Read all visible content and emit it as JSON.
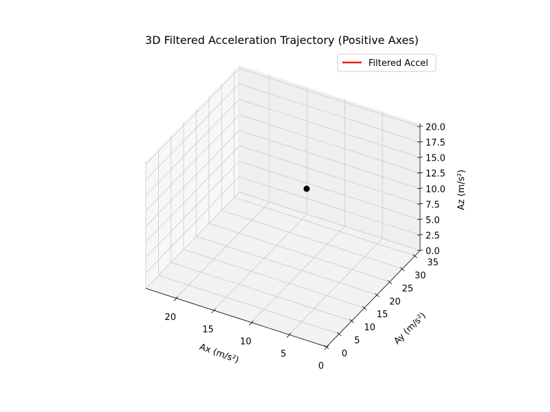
{
  "chart_data": {
    "type": "line",
    "title": "3D Filtered Acceleration Trajectory (Positive Axes)",
    "xlabel": "Ax (m/s²)",
    "ylabel": "Ay (m/s²)",
    "zlabel": "Az (m/s²)",
    "xlim": [
      0,
      24
    ],
    "ylim": [
      0,
      37
    ],
    "zlim": [
      0,
      20.5
    ],
    "xticks": [
      "0",
      "5",
      "10",
      "15",
      "20"
    ],
    "yticks": [
      "0",
      "5",
      "10",
      "15",
      "20",
      "25",
      "30",
      "35"
    ],
    "zticks": [
      "0.0",
      "2.5",
      "5.0",
      "7.5",
      "10.0",
      "12.5",
      "15.0",
      "17.5",
      "20.0"
    ],
    "series": [
      {
        "name": "Filtered Accel",
        "color": "#e41a1c",
        "x": [
          11.6
        ],
        "y": [
          26.7
        ],
        "z": [
          9.75
        ]
      }
    ],
    "marker": {
      "color": "#000000"
    },
    "legend": "top-right",
    "grid": true
  }
}
